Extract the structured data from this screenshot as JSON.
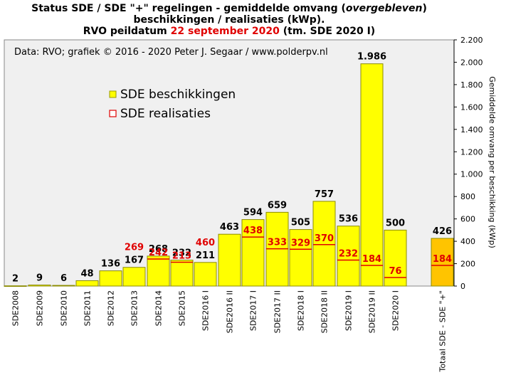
{
  "title": {
    "line1_a": "Status SDE  / SDE \"+\" regelingen  - gemiddelde omvang (",
    "line1_italic": "overgebleven",
    "line1_b": ")",
    "line2": "beschikkingen  / realisaties (kWp).",
    "line3_a": "RVO peildatum ",
    "line3_red": "22 september 2020",
    "line3_b": " (tm. SDE 2020 I)"
  },
  "source": "Data: RVO;  grafiek © 2016 - 2020 Peter J. Segaar / www.polderpv.nl",
  "colors": {
    "plot_bg": "#f0f0f0",
    "bar_yellow": "#ffff00",
    "bar_orange": "#ffc400",
    "realisatie_line": "#e00000",
    "label_red": "#e00000"
  },
  "chart_data": {
    "type": "bar",
    "categories": [
      "SDE2008",
      "SDE2009",
      "SDE2010",
      "SDE2011",
      "SDE2012",
      "SDE2013",
      "SDE2014",
      "SDE2015",
      "SDE2016 I",
      "SDE2016 II",
      "SDE2017 I",
      "SDE2017 II",
      "SDE2018 I",
      "SDE2018 II",
      "SDE2019 I",
      "SDE2019 II",
      "SDE2020 I",
      "Totaal SDE - SDE \"+\""
    ],
    "series": [
      {
        "name": "SDE beschikkingen",
        "values": [
          2,
          9,
          6,
          48,
          136,
          167,
          268,
          232,
          211,
          463,
          594,
          659,
          505,
          757,
          536,
          1986,
          500,
          426
        ],
        "labels": [
          "2",
          "9",
          "6",
          "48",
          "136",
          "167",
          "268",
          "232",
          "211",
          "463",
          "594",
          "659",
          "505",
          "757",
          "536",
          "1.986",
          "500",
          "426"
        ]
      },
      {
        "name": "SDE realisaties",
        "values": [
          null,
          null,
          null,
          null,
          null,
          269,
          242,
          213,
          460,
          null,
          438,
          333,
          329,
          370,
          232,
          184,
          76,
          184
        ],
        "labels": [
          null,
          null,
          null,
          null,
          null,
          "269",
          "242",
          "213",
          "460",
          null,
          "438",
          "333",
          "329",
          "370",
          "232",
          "184",
          "76",
          "184"
        ]
      }
    ],
    "ylim": [
      0,
      2200
    ],
    "yticks": [
      0,
      200,
      400,
      600,
      800,
      1000,
      1200,
      1400,
      1600,
      1800,
      2000,
      2200
    ],
    "ytick_labels": [
      "0",
      "200",
      "400",
      "600",
      "800",
      "1.000",
      "1.200",
      "1.400",
      "1.600",
      "1.800",
      "2.000",
      "2.200"
    ],
    "ylabel": "Gemiddelde omvang per beschikking (kWp)",
    "y_axis_side": "right",
    "legend_position": "upper-left",
    "grid": false
  }
}
